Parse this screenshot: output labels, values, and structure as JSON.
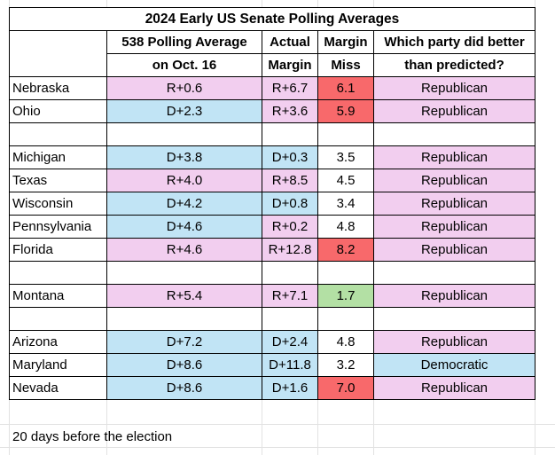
{
  "title": "2024 Early US Senate Polling Averages",
  "headers": {
    "col1": [
      "538 Polling Average",
      "on Oct. 16"
    ],
    "col2": [
      "Actual",
      "Margin"
    ],
    "col3": [
      "Margin",
      "Miss"
    ],
    "col4": [
      "Which party did better",
      "than predicted?"
    ]
  },
  "groups": [
    [
      {
        "state": "Nebraska",
        "poll": "R+0.6",
        "actual": "R+6.7",
        "miss": "6.1",
        "better": "Republican"
      },
      {
        "state": "Ohio",
        "poll": "D+2.3",
        "actual": "R+3.6",
        "miss": "5.9",
        "better": "Republican"
      }
    ],
    [
      {
        "state": "Michigan",
        "poll": "D+3.8",
        "actual": "D+0.3",
        "miss": "3.5",
        "better": "Republican"
      },
      {
        "state": "Texas",
        "poll": "R+4.0",
        "actual": "R+8.5",
        "miss": "4.5",
        "better": "Republican"
      },
      {
        "state": "Wisconsin",
        "poll": "D+4.2",
        "actual": "D+0.8",
        "miss": "3.4",
        "better": "Republican"
      },
      {
        "state": "Pennsylvania",
        "poll": "D+4.6",
        "actual": "R+0.2",
        "miss": "4.8",
        "better": "Republican"
      },
      {
        "state": "Florida",
        "poll": "R+4.6",
        "actual": "R+12.8",
        "miss": "8.2",
        "better": "Republican"
      }
    ],
    [
      {
        "state": "Montana",
        "poll": "R+5.4",
        "actual": "R+7.1",
        "miss": "1.7",
        "better": "Republican"
      }
    ],
    [
      {
        "state": "Arizona",
        "poll": "D+7.2",
        "actual": "D+2.4",
        "miss": "4.8",
        "better": "Republican"
      },
      {
        "state": "Maryland",
        "poll": "D+8.6",
        "actual": "D+11.8",
        "miss": "3.2",
        "better": "Democratic"
      },
      {
        "state": "Nevada",
        "poll": "D+8.6",
        "actual": "D+1.6",
        "miss": "7.0",
        "better": "Republican"
      }
    ]
  ],
  "colors": {
    "republican": "#f2ceef",
    "democratic": "#c1e4f5",
    "large_miss": "#f8696b",
    "small_miss": "#b3e0a4"
  },
  "footnote": "20 days before the election"
}
